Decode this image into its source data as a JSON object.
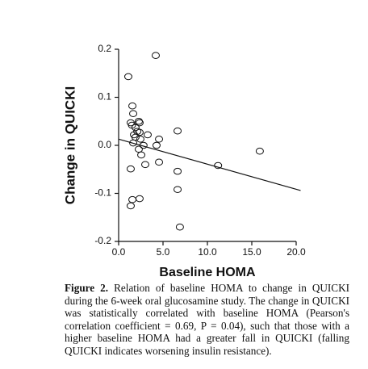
{
  "chart_data": {
    "type": "scatter",
    "x_label": "Baseline HOMA",
    "y_label": "Change in QUICKI",
    "x": [
      4.18,
      1.09,
      1.55,
      1.64,
      1.36,
      1.5,
      2.27,
      2.36,
      1.9,
      2.1,
      1.73,
      2.36,
      1.9,
      2.45,
      3.27,
      4.55,
      6.64,
      4.27,
      1.64,
      2.27,
      2.8,
      2.55,
      3.0,
      4.55,
      1.36,
      6.64,
      11.2,
      15.9,
      6.64,
      1.55,
      2.36,
      1.36,
      6.9
    ],
    "values": [
      0.187,
      0.143,
      0.082,
      0.066,
      0.047,
      0.042,
      0.05,
      0.047,
      0.037,
      0.029,
      0.022,
      0.027,
      0.017,
      0.013,
      0.022,
      0.013,
      0.03,
      0.0,
      0.005,
      -0.008,
      0.0,
      -0.02,
      -0.04,
      -0.035,
      -0.049,
      -0.054,
      -0.042,
      -0.012,
      -0.092,
      -0.113,
      -0.111,
      -0.126,
      -0.17
    ],
    "fit": {
      "x": [
        0,
        20.5
      ],
      "values": [
        0.013,
        -0.094
      ]
    },
    "xlim": [
      0,
      20
    ],
    "xticks": [
      {
        "value": 0,
        "label": "0.0"
      },
      {
        "value": 5,
        "label": "5.0"
      },
      {
        "value": 10,
        "label": "10.0"
      },
      {
        "value": 15,
        "label": "15.0"
      },
      {
        "value": 20,
        "label": "20.0"
      }
    ],
    "ylim": [
      -0.2,
      0.2
    ],
    "yticks": [
      -0.2,
      -0.1,
      {
        "value": 0,
        "label": "0.0"
      },
      0.1,
      0.2
    ],
    "grid": false
  },
  "caption": {
    "label": "Figure 2.",
    "text": "Relation of baseline HOMA to change in QUICKI during the 6-week oral glucosamine study. The change in QUICKI was statistically correlated with baseline HOMA (Pearson's correlation coefficient = 0.69, P = 0.04), such that those with a higher baseline HOMA had a greater fall in QUICKI (falling QUICKI indicates worsening insulin resistance)."
  }
}
